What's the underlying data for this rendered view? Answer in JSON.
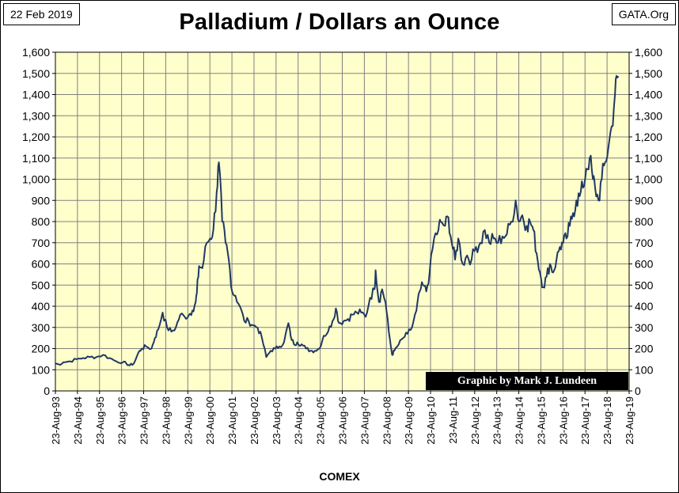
{
  "header": {
    "date": "22 Feb 2019",
    "source": "GATA.Org"
  },
  "chart_data": {
    "type": "line",
    "title": "Palladium / Dollars an Ounce",
    "xlabel": "COMEX",
    "ylabel": "",
    "credit": "Graphic by Mark J. Lundeen",
    "ylim": [
      0,
      1600
    ],
    "yticks": [
      "0",
      "100",
      "200",
      "300",
      "400",
      "500",
      "600",
      "700",
      "800",
      "900",
      "1,000",
      "1,100",
      "1,200",
      "1,300",
      "1,400",
      "1,500",
      "1,600"
    ],
    "xticks": [
      "23-Aug-93",
      "23-Aug-94",
      "23-Aug-95",
      "23-Aug-96",
      "23-Aug-97",
      "23-Aug-98",
      "23-Aug-99",
      "23-Aug-00",
      "23-Aug-01",
      "23-Aug-02",
      "23-Aug-03",
      "23-Aug-04",
      "23-Aug-05",
      "23-Aug-06",
      "23-Aug-07",
      "23-Aug-08",
      "23-Aug-09",
      "23-Aug-10",
      "23-Aug-11",
      "23-Aug-12",
      "23-Aug-13",
      "23-Aug-14",
      "23-Aug-15",
      "23-Aug-16",
      "23-Aug-17",
      "23-Aug-18",
      "23-Aug-19"
    ],
    "grid": true,
    "axis_left": true,
    "axis_right": true,
    "colors": {
      "plot_background": "#FFFFCC",
      "line": "#1F3864",
      "grid": "#808080"
    },
    "series": [
      {
        "x": [
          1993.64,
          1993.8,
          1994.0,
          1994.3,
          1994.6,
          1994.9,
          1995.2,
          1995.5,
          1995.8,
          1996.1,
          1996.4,
          1996.7,
          1996.85,
          1997.0,
          1997.2,
          1997.4,
          1997.55,
          1997.75,
          1998.0,
          1998.15,
          1998.3,
          1998.5,
          1998.7,
          1998.9,
          1999.1,
          1999.3,
          1999.5,
          1999.7,
          1999.85,
          2000.0,
          2000.05,
          2000.15,
          2000.3,
          2000.5,
          2000.65,
          2000.8,
          2000.95,
          2001.05,
          2001.2,
          2001.35,
          2001.5,
          2001.65,
          2001.8,
          2002.0,
          2002.2,
          2002.4,
          2002.6,
          2002.8,
          2003.0,
          2003.2,
          2003.4,
          2003.6,
          2003.8,
          2004.0,
          2004.2,
          2004.3,
          2004.45,
          2004.6,
          2004.8,
          2005.0,
          2005.2,
          2005.4,
          2005.6,
          2005.8,
          2006.0,
          2006.2,
          2006.35,
          2006.5,
          2006.7,
          2006.9,
          2007.1,
          2007.3,
          2007.5,
          2007.7,
          2007.9,
          2008.1,
          2008.15,
          2008.3,
          2008.45,
          2008.6,
          2008.75,
          2008.9,
          2009.0,
          2009.2,
          2009.4,
          2009.6,
          2009.8,
          2010.0,
          2010.15,
          2010.3,
          2010.45,
          2010.6,
          2010.8,
          2011.0,
          2011.1,
          2011.3,
          2011.45,
          2011.6,
          2011.75,
          2011.9,
          2012.1,
          2012.3,
          2012.5,
          2012.7,
          2012.9,
          2013.1,
          2013.3,
          2013.5,
          2013.7,
          2013.9,
          2014.1,
          2014.3,
          2014.5,
          2014.65,
          2014.8,
          2015.0,
          2015.15,
          2015.3,
          2015.45,
          2015.6,
          2015.75,
          2015.9,
          2016.05,
          2016.2,
          2016.35,
          2016.5,
          2016.65,
          2016.8,
          2016.95,
          2017.1,
          2017.25,
          2017.4,
          2017.55,
          2017.7,
          2017.85,
          2018.0,
          2018.1,
          2018.25,
          2018.4,
          2018.55,
          2018.7,
          2018.85,
          2019.0,
          2019.1,
          2019.15
        ],
        "y": [
          130,
          125,
          135,
          140,
          150,
          155,
          160,
          160,
          170,
          155,
          140,
          135,
          130,
          120,
          130,
          180,
          200,
          210,
          200,
          250,
          290,
          370,
          300,
          280,
          300,
          360,
          350,
          360,
          380,
          420,
          460,
          590,
          580,
          700,
          720,
          760,
          940,
          1080,
          800,
          700,
          620,
          470,
          450,
          400,
          330,
          330,
          310,
          300,
          250,
          160,
          190,
          200,
          210,
          230,
          320,
          260,
          220,
          230,
          220,
          200,
          190,
          190,
          200,
          260,
          280,
          330,
          390,
          320,
          330,
          340,
          360,
          370,
          370,
          350,
          440,
          480,
          570,
          420,
          480,
          420,
          280,
          170,
          190,
          220,
          250,
          270,
          300,
          380,
          470,
          500,
          470,
          560,
          720,
          760,
          800,
          780,
          820,
          700,
          620,
          720,
          600,
          640,
          620,
          680,
          700,
          760,
          700,
          720,
          700,
          730,
          740,
          800,
          900,
          800,
          830,
          780,
          800,
          760,
          650,
          560,
          490,
          540,
          600,
          560,
          620,
          680,
          700,
          720,
          780,
          840,
          900,
          920,
          960,
          1050,
          1100,
          1000,
          960,
          900,
          1000,
          1080,
          1150,
          1250,
          1400,
          1480,
          1480
        ]
      }
    ]
  }
}
